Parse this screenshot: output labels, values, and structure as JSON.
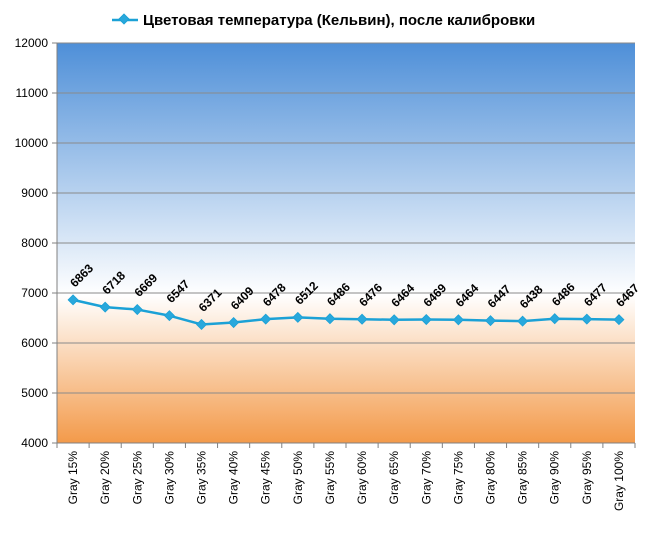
{
  "chart_data": {
    "type": "line",
    "title": "Цветовая температура (Кельвин), после калибровки",
    "categories": [
      "Gray 15%",
      "Gray 20%",
      "Gray 25%",
      "Gray 30%",
      "Gray 35%",
      "Gray 40%",
      "Gray 45%",
      "Gray 50%",
      "Gray 55%",
      "Gray 60%",
      "Gray 65%",
      "Gray 70%",
      "Gray 75%",
      "Gray 80%",
      "Gray 85%",
      "Gray 90%",
      "Gray 95%",
      "Gray 100%"
    ],
    "series": [
      {
        "name": "Цветовая температура (Кельвин), после калибровки",
        "values": [
          6863,
          6718,
          6669,
          6547,
          6371,
          6409,
          6478,
          6512,
          6486,
          6476,
          6464,
          6469,
          6464,
          6447,
          6438,
          6486,
          6477,
          6467
        ]
      }
    ],
    "ylim": [
      4000,
      12000
    ],
    "yticks": [
      "4000",
      "5000",
      "6000",
      "7000",
      "8000",
      "9000",
      "10000",
      "11000",
      "12000"
    ],
    "grid": true,
    "legend_position": "top",
    "colors": {
      "line": "#1ba1d6",
      "marker": "#29a8dc",
      "background_top": "#4e8fd8",
      "background_mid": "#ffffff",
      "background_bottom": "#f39a4a",
      "gridline": "#8a8a8a"
    }
  }
}
